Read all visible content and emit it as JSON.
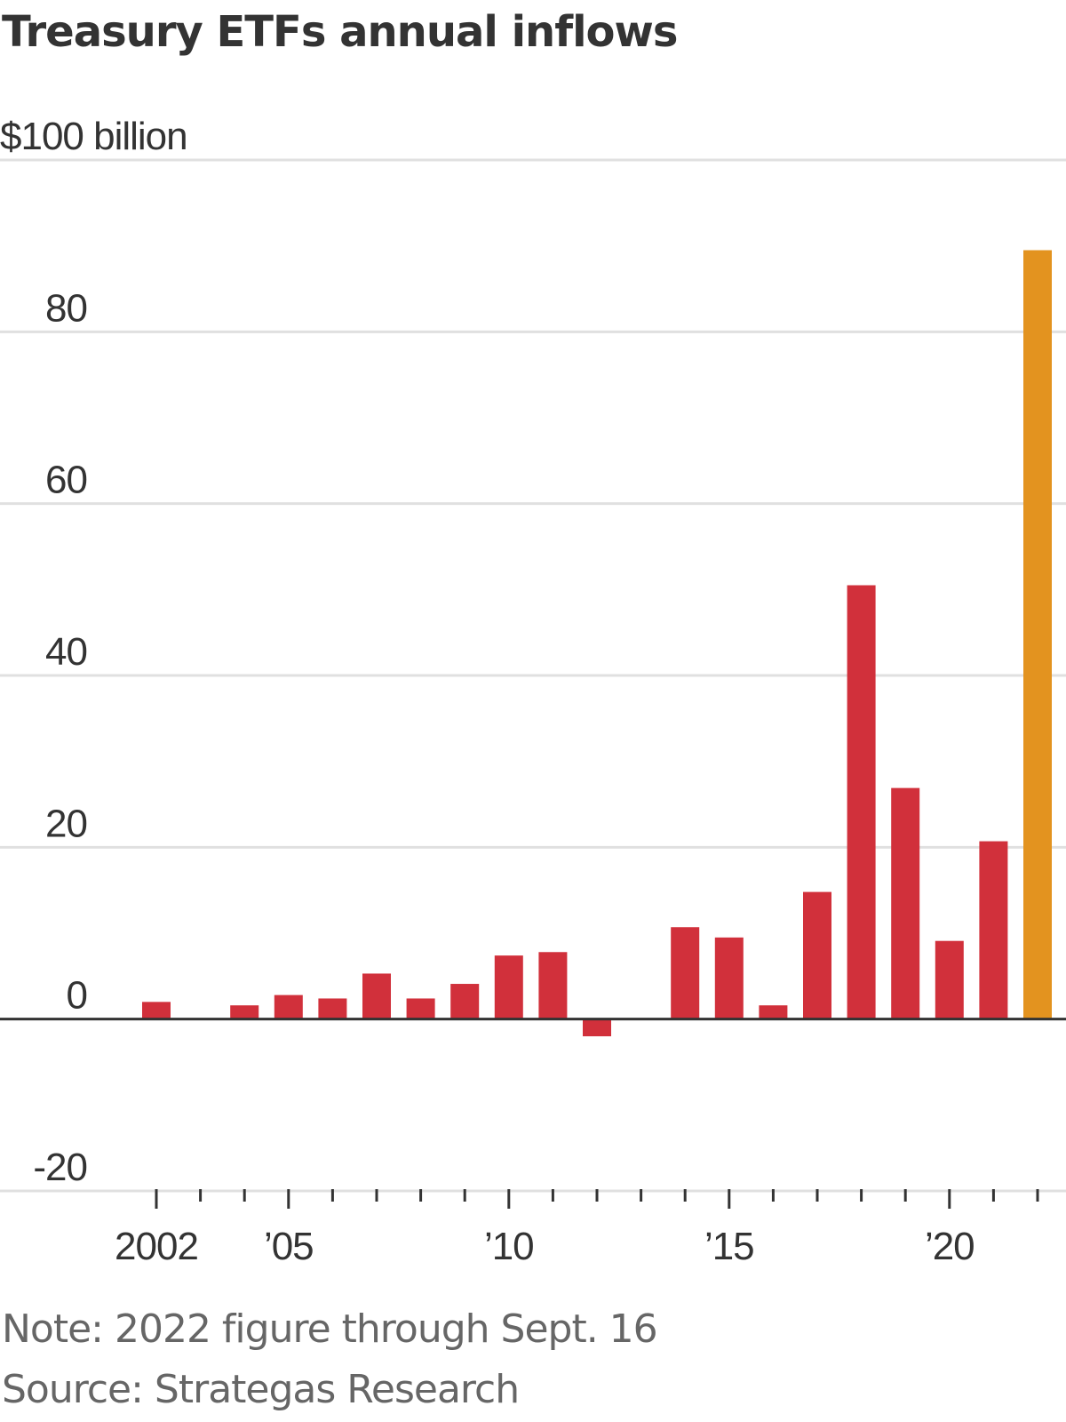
{
  "chart_data": {
    "type": "bar",
    "title": "Treasury ETFs annual inflows",
    "ylabel_unit": "$100 billion",
    "ylim": [
      -20,
      100
    ],
    "yticks": [
      -20,
      0,
      20,
      40,
      60,
      80,
      100
    ],
    "ytick_labels": [
      "-20",
      "0",
      "20",
      "40",
      "60",
      "80",
      "$100 billion"
    ],
    "x": [
      2002,
      2003,
      2004,
      2005,
      2006,
      2007,
      2008,
      2009,
      2010,
      2011,
      2012,
      2013,
      2014,
      2015,
      2016,
      2017,
      2018,
      2019,
      2020,
      2021,
      2022
    ],
    "values": [
      2.0,
      0,
      1.6,
      2.8,
      2.4,
      5.3,
      2.4,
      4.1,
      7.4,
      7.8,
      -2.0,
      0,
      10.7,
      9.5,
      1.6,
      14.8,
      50.5,
      26.9,
      9.1,
      20.7,
      89.5
    ],
    "xtick_labels": [
      {
        "year": 2002,
        "label": "2002"
      },
      {
        "year": 2005,
        "label": "’05"
      },
      {
        "year": 2010,
        "label": "’10"
      },
      {
        "year": 2015,
        "label": "’15"
      },
      {
        "year": 2020,
        "label": "’20"
      }
    ],
    "grid": true,
    "colors": {
      "bar": "#d1303b",
      "highlight": "#e3931f",
      "grid": "#e0e0e0",
      "axis": "#333333"
    },
    "highlight_year": 2022
  },
  "note": "Note: 2022 figure through Sept. 16",
  "source": "Source: Strategas Research"
}
